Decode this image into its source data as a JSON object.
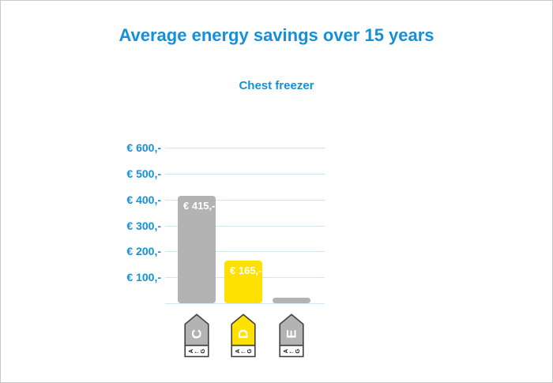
{
  "chart_data": {
    "type": "bar",
    "title": "Average energy savings over 15 years",
    "subtitle": "Chest freezer",
    "ylabel": "",
    "xlabel": "",
    "ylim": [
      0,
      650
    ],
    "grid": true,
    "legend": false,
    "y_ticks": [
      {
        "value": 600,
        "label": "€ 600,-"
      },
      {
        "value": 500,
        "label": "€ 500,-"
      },
      {
        "value": 400,
        "label": "€ 400,-"
      },
      {
        "value": 300,
        "label": "€ 300,-"
      },
      {
        "value": 200,
        "label": "€ 200,-"
      },
      {
        "value": 100,
        "label": "€ 100,-"
      }
    ],
    "categories": [
      "C",
      "D",
      "E"
    ],
    "bars": [
      {
        "category": "C",
        "value": 415,
        "value_label": "€ 415,-",
        "bar_color": "#b3b3b3",
        "energy_tag": {
          "letter": "C",
          "color": "#b3b3b3",
          "scale": {
            "from": "A",
            "arrow": "←",
            "to": "G"
          }
        }
      },
      {
        "category": "D",
        "value": 165,
        "value_label": "€ 165,-",
        "bar_color": "#ffe100",
        "energy_tag": {
          "letter": "D",
          "color": "#ffe100",
          "scale": {
            "from": "A",
            "arrow": "←",
            "to": "G"
          }
        }
      },
      {
        "category": "E",
        "value": 20,
        "value_label": "",
        "bar_color": "#b3b3b3",
        "energy_tag": {
          "letter": "E",
          "color": "#b3b3b3",
          "scale": {
            "from": "A",
            "arrow": "←",
            "to": "G"
          }
        }
      }
    ],
    "colors": {
      "accent_blue": "#1590d8",
      "gridline": "#cfe6f5",
      "bar_gray": "#b3b3b3",
      "bar_yellow": "#ffe100",
      "value_label_text": "#ffffff",
      "tag_border": "#404040",
      "tag_letter": "#ffffff",
      "tag_scale_text": "#1a1a1a",
      "frame_border": "#c9c9c9",
      "background": "#ffffff"
    }
  }
}
